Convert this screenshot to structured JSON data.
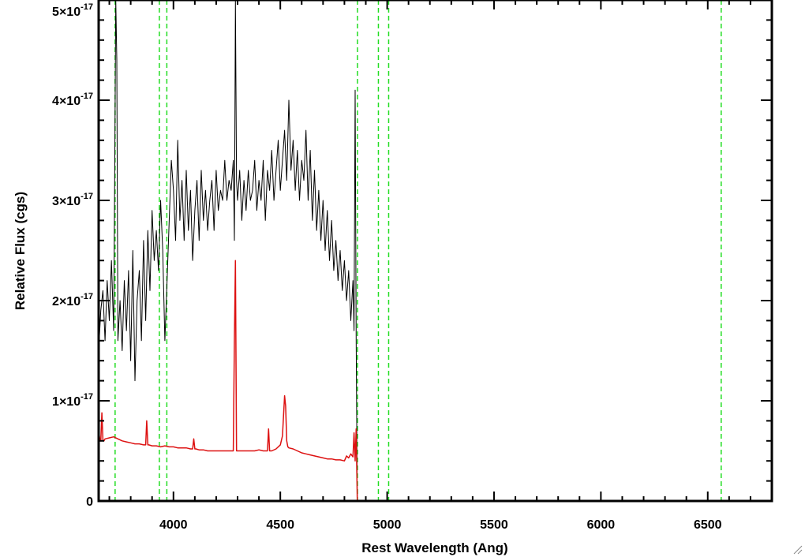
{
  "chart_data": {
    "type": "line",
    "title": "",
    "xlabel": "Rest Wavelength (Ang)",
    "ylabel": "Relative Flux (cgs)",
    "xlim": [
      3650,
      6800
    ],
    "ylim": [
      0,
      5e-17
    ],
    "x_ticks": [
      {
        "value": 4000,
        "label": "4000"
      },
      {
        "value": 4500,
        "label": "4500"
      },
      {
        "value": 5000,
        "label": "5000"
      },
      {
        "value": 5500,
        "label": "5500"
      },
      {
        "value": 6000,
        "label": "6000"
      },
      {
        "value": 6500,
        "label": "6500"
      }
    ],
    "y_ticks": [
      {
        "value": 0,
        "mantissa": "0",
        "exponent": ""
      },
      {
        "value": 1e-17,
        "mantissa": "1×10",
        "exponent": "-17"
      },
      {
        "value": 2e-17,
        "mantissa": "2×10",
        "exponent": "-17"
      },
      {
        "value": 3e-17,
        "mantissa": "3×10",
        "exponent": "-17"
      },
      {
        "value": 4e-17,
        "mantissa": "4×10",
        "exponent": "-17"
      },
      {
        "value": 5e-17,
        "mantissa": "5×10",
        "exponent": "-17"
      }
    ],
    "grid": false,
    "legend": "none",
    "colors": {
      "spectrum": "#000000",
      "error": "#dd1111",
      "lines": "#22dd22"
    },
    "series": [
      {
        "role": "spectrum",
        "color": "#000000",
        "x": [
          3650,
          3660,
          3670,
          3680,
          3690,
          3700,
          3710,
          3720,
          3725,
          3730,
          3735,
          3740,
          3750,
          3760,
          3770,
          3780,
          3790,
          3800,
          3810,
          3820,
          3830,
          3840,
          3850,
          3860,
          3870,
          3880,
          3890,
          3900,
          3910,
          3920,
          3930,
          3940,
          3950,
          3960,
          3970,
          3980,
          3990,
          4000,
          4010,
          4020,
          4030,
          4040,
          4050,
          4060,
          4070,
          4080,
          4090,
          4100,
          4110,
          4120,
          4130,
          4140,
          4150,
          4160,
          4170,
          4180,
          4190,
          4200,
          4210,
          4220,
          4230,
          4240,
          4250,
          4260,
          4270,
          4280,
          4285,
          4290,
          4295,
          4300,
          4310,
          4320,
          4330,
          4340,
          4350,
          4360,
          4370,
          4380,
          4390,
          4400,
          4410,
          4420,
          4430,
          4440,
          4450,
          4460,
          4470,
          4480,
          4490,
          4500,
          4510,
          4520,
          4530,
          4540,
          4550,
          4560,
          4570,
          4580,
          4590,
          4600,
          4610,
          4620,
          4630,
          4640,
          4650,
          4660,
          4670,
          4680,
          4690,
          4700,
          4710,
          4720,
          4730,
          4740,
          4750,
          4760,
          4770,
          4780,
          4790,
          4800,
          4810,
          4820,
          4830,
          4840,
          4845,
          4850,
          4855,
          4860,
          4865,
          4870,
          4900,
          5000,
          5500,
          6000,
          6500,
          6800
        ],
        "y": [
          1.5e-17,
          1.9e-17,
          2.1e-17,
          1.6e-17,
          2.2e-17,
          1.8e-17,
          2.4e-17,
          1.7e-17,
          3.2e-17,
          5e-17,
          4.4e-17,
          1.6e-17,
          2e-17,
          1.5e-17,
          2.2e-17,
          1.7e-17,
          2.3e-17,
          1.4e-17,
          2.5e-17,
          1.2e-17,
          2e-17,
          2.3e-17,
          1.6e-17,
          2.6e-17,
          1.8e-17,
          2.7e-17,
          2.1e-17,
          2.9e-17,
          2.4e-17,
          2.7e-17,
          2.3e-17,
          3e-17,
          2.5e-17,
          1.6e-17,
          2.2e-17,
          2.8e-17,
          3.4e-17,
          3.1e-17,
          2.6e-17,
          3.6e-17,
          2.8e-17,
          3.2e-17,
          2.6e-17,
          3.3e-17,
          2.7e-17,
          3.1e-17,
          2.4e-17,
          2.9e-17,
          3.2e-17,
          2.6e-17,
          3.3e-17,
          2.8e-17,
          3.1e-17,
          2.7e-17,
          3e-17,
          3.2e-17,
          2.7e-17,
          3.3e-17,
          2.9e-17,
          3.1e-17,
          3e-17,
          3.4e-17,
          3e-17,
          3.2e-17,
          3.1e-17,
          3.4e-17,
          2.6e-17,
          5e-17,
          3.2e-17,
          3e-17,
          3.3e-17,
          2.8e-17,
          3.2e-17,
          2.9e-17,
          3.3e-17,
          3e-17,
          3.1e-17,
          3.4e-17,
          2.9e-17,
          3.2e-17,
          3e-17,
          3.4e-17,
          2.8e-17,
          3.3e-17,
          3.1e-17,
          3.5e-17,
          3e-17,
          3.3e-17,
          3.6e-17,
          3.1e-17,
          3.4e-17,
          3.7e-17,
          3.2e-17,
          4e-17,
          3.3e-17,
          3.6e-17,
          3.1e-17,
          3.5e-17,
          3e-17,
          3.4e-17,
          3.2e-17,
          3.7e-17,
          3e-17,
          3.5e-17,
          2.8e-17,
          3.3e-17,
          2.7e-17,
          3.1e-17,
          2.6e-17,
          3e-17,
          2.5e-17,
          2.9e-17,
          2.4e-17,
          2.8e-17,
          2.3e-17,
          2.6e-17,
          2.2e-17,
          2.5e-17,
          2.1e-17,
          2.4e-17,
          2e-17,
          2.3e-17,
          1.8e-17,
          2.2e-17,
          1.7e-17,
          4.1e-17,
          1.6e-17,
          0,
          0,
          0,
          0,
          0,
          0,
          0,
          0,
          0
        ]
      },
      {
        "role": "error",
        "color": "#dd1111",
        "x": [
          3650,
          3655,
          3660,
          3665,
          3670,
          3675,
          3680,
          3700,
          3720,
          3740,
          3760,
          3780,
          3800,
          3820,
          3840,
          3860,
          3870,
          3875,
          3880,
          3885,
          3900,
          3920,
          3940,
          3960,
          3980,
          4000,
          4020,
          4040,
          4060,
          4080,
          4090,
          4095,
          4100,
          4105,
          4120,
          4140,
          4160,
          4180,
          4200,
          4220,
          4240,
          4260,
          4280,
          4285,
          4290,
          4295,
          4300,
          4320,
          4340,
          4360,
          4380,
          4400,
          4420,
          4440,
          4445,
          4450,
          4455,
          4460,
          4480,
          4500,
          4510,
          4520,
          4525,
          4530,
          4535,
          4540,
          4560,
          4580,
          4600,
          4620,
          4640,
          4660,
          4680,
          4700,
          4720,
          4740,
          4760,
          4780,
          4800,
          4810,
          4820,
          4830,
          4840,
          4845,
          4850,
          4855,
          4860,
          4865,
          4870,
          4900,
          5000,
          5500,
          6000,
          6500,
          6800
        ],
        "y": [
          7e-18,
          6.2e-18,
          6e-18,
          8.8e-18,
          6.1e-18,
          6e-18,
          6.2e-18,
          6.3e-18,
          6.4e-18,
          6.2e-18,
          6e-18,
          5.9e-18,
          5.8e-18,
          5.7e-18,
          5.7e-18,
          5.6e-18,
          5.6e-18,
          8e-18,
          5.6e-18,
          5.6e-18,
          5.5e-18,
          5.5e-18,
          5.4e-18,
          5.5e-18,
          5.4e-18,
          5.4e-18,
          5.3e-18,
          5.3e-18,
          5.3e-18,
          5.2e-18,
          5.2e-18,
          6.2e-18,
          5.2e-18,
          5.2e-18,
          5.1e-18,
          5.1e-18,
          5e-18,
          5e-18,
          5e-18,
          5e-18,
          5e-18,
          5e-18,
          5e-18,
          1.6e-17,
          2.4e-17,
          5e-18,
          5e-18,
          5e-18,
          5e-18,
          5e-18,
          5e-18,
          5.1e-18,
          5e-18,
          5e-18,
          7.2e-18,
          5e-18,
          5e-18,
          5e-18,
          5.2e-18,
          5.6e-18,
          6.5e-18,
          1.05e-17,
          9.5e-18,
          6e-18,
          5.4e-18,
          5.3e-18,
          5.2e-18,
          5e-18,
          4.8e-18,
          4.7e-18,
          4.6e-18,
          4.5e-18,
          4.4e-18,
          4.3e-18,
          4.2e-18,
          4.2e-18,
          4.1e-18,
          4.1e-18,
          4e-18,
          4.5e-18,
          4.3e-18,
          4.7e-18,
          4.4e-18,
          6.8e-18,
          4e-18,
          7.2e-18,
          0,
          0,
          0,
          0,
          0,
          0,
          0,
          0,
          0
        ]
      }
    ],
    "vertical_lines": [
      3727,
      3934,
      3969,
      4861,
      4959,
      5007,
      6563
    ]
  }
}
